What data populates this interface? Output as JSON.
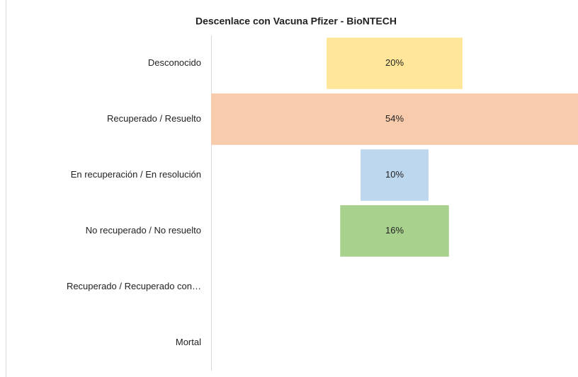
{
  "chart_data": {
    "type": "funnel",
    "title": "Descenlace con Vacuna Pfizer - BioNTECH",
    "categories": [
      "Desconocido",
      "Recuperado / Resuelto",
      "En recuperación / En resolución",
      "No recuperado / No resuelto",
      "Recuperado / Recuperado con…",
      "Mortal"
    ],
    "values": [
      20,
      54,
      10,
      16,
      null,
      null
    ],
    "value_labels": [
      "20%",
      "54%",
      "10%",
      "16%",
      null,
      null
    ],
    "colors": [
      "#FFE699",
      "#F8CBAD",
      "#BDD7EE",
      "#A9D18E",
      null,
      null
    ]
  }
}
